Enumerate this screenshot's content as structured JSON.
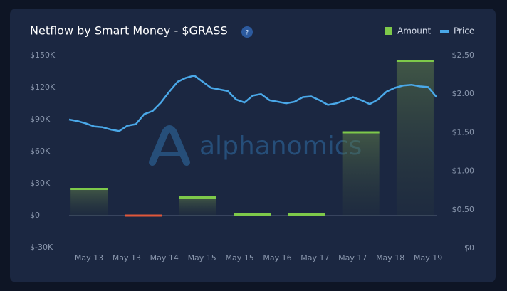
{
  "chart_data": {
    "type": "bar-line",
    "title": "Netflow by Smart Money - $GRASS",
    "help_icon": "?",
    "watermark": "alphanomics",
    "legend_position": "top-right",
    "xtick_labels": [
      "May 13",
      "May 13",
      "May 14",
      "May 15",
      "May 15",
      "May 16",
      "May 17",
      "May 17",
      "May 18",
      "May 19"
    ],
    "amount": {
      "name": "Amount",
      "color": "#7ec94a",
      "negative_color": "#e0573a",
      "values": [
        25000,
        -1500,
        17000,
        1000,
        1000,
        78000,
        145000
      ]
    },
    "price": {
      "name": "Price",
      "color": "#4aa8e8",
      "axis": "y2",
      "values": [
        1.67,
        1.65,
        1.62,
        1.58,
        1.57,
        1.54,
        1.52,
        1.59,
        1.61,
        1.74,
        1.78,
        1.89,
        2.03,
        2.16,
        2.21,
        2.24,
        2.16,
        2.08,
        2.06,
        2.04,
        1.93,
        1.89,
        1.98,
        2.0,
        1.92,
        1.9,
        1.88,
        1.9,
        1.96,
        1.97,
        1.92,
        1.86,
        1.88,
        1.92,
        1.96,
        1.92,
        1.87,
        1.93,
        2.03,
        2.08,
        2.11,
        2.12,
        2.1,
        2.09,
        1.96
      ]
    },
    "ylim": [
      -30000,
      150000
    ],
    "yticks": [
      {
        "value": -30000,
        "label": "$-30K"
      },
      {
        "value": 0,
        "label": "$0"
      },
      {
        "value": 30000,
        "label": "$30K"
      },
      {
        "value": 60000,
        "label": "$60K"
      },
      {
        "value": 90000,
        "label": "$90K"
      },
      {
        "value": 120000,
        "label": "$120K"
      },
      {
        "value": 150000,
        "label": "$150K"
      }
    ],
    "y2lim": [
      0,
      2.5
    ],
    "y2ticks": [
      {
        "value": 0,
        "label": "$0"
      },
      {
        "value": 0.5,
        "label": "$0.50"
      },
      {
        "value": 1.0,
        "label": "$1.00"
      },
      {
        "value": 1.5,
        "label": "$1.50"
      },
      {
        "value": 2.0,
        "label": "$2.00"
      },
      {
        "value": 2.5,
        "label": "$2.50"
      }
    ]
  }
}
